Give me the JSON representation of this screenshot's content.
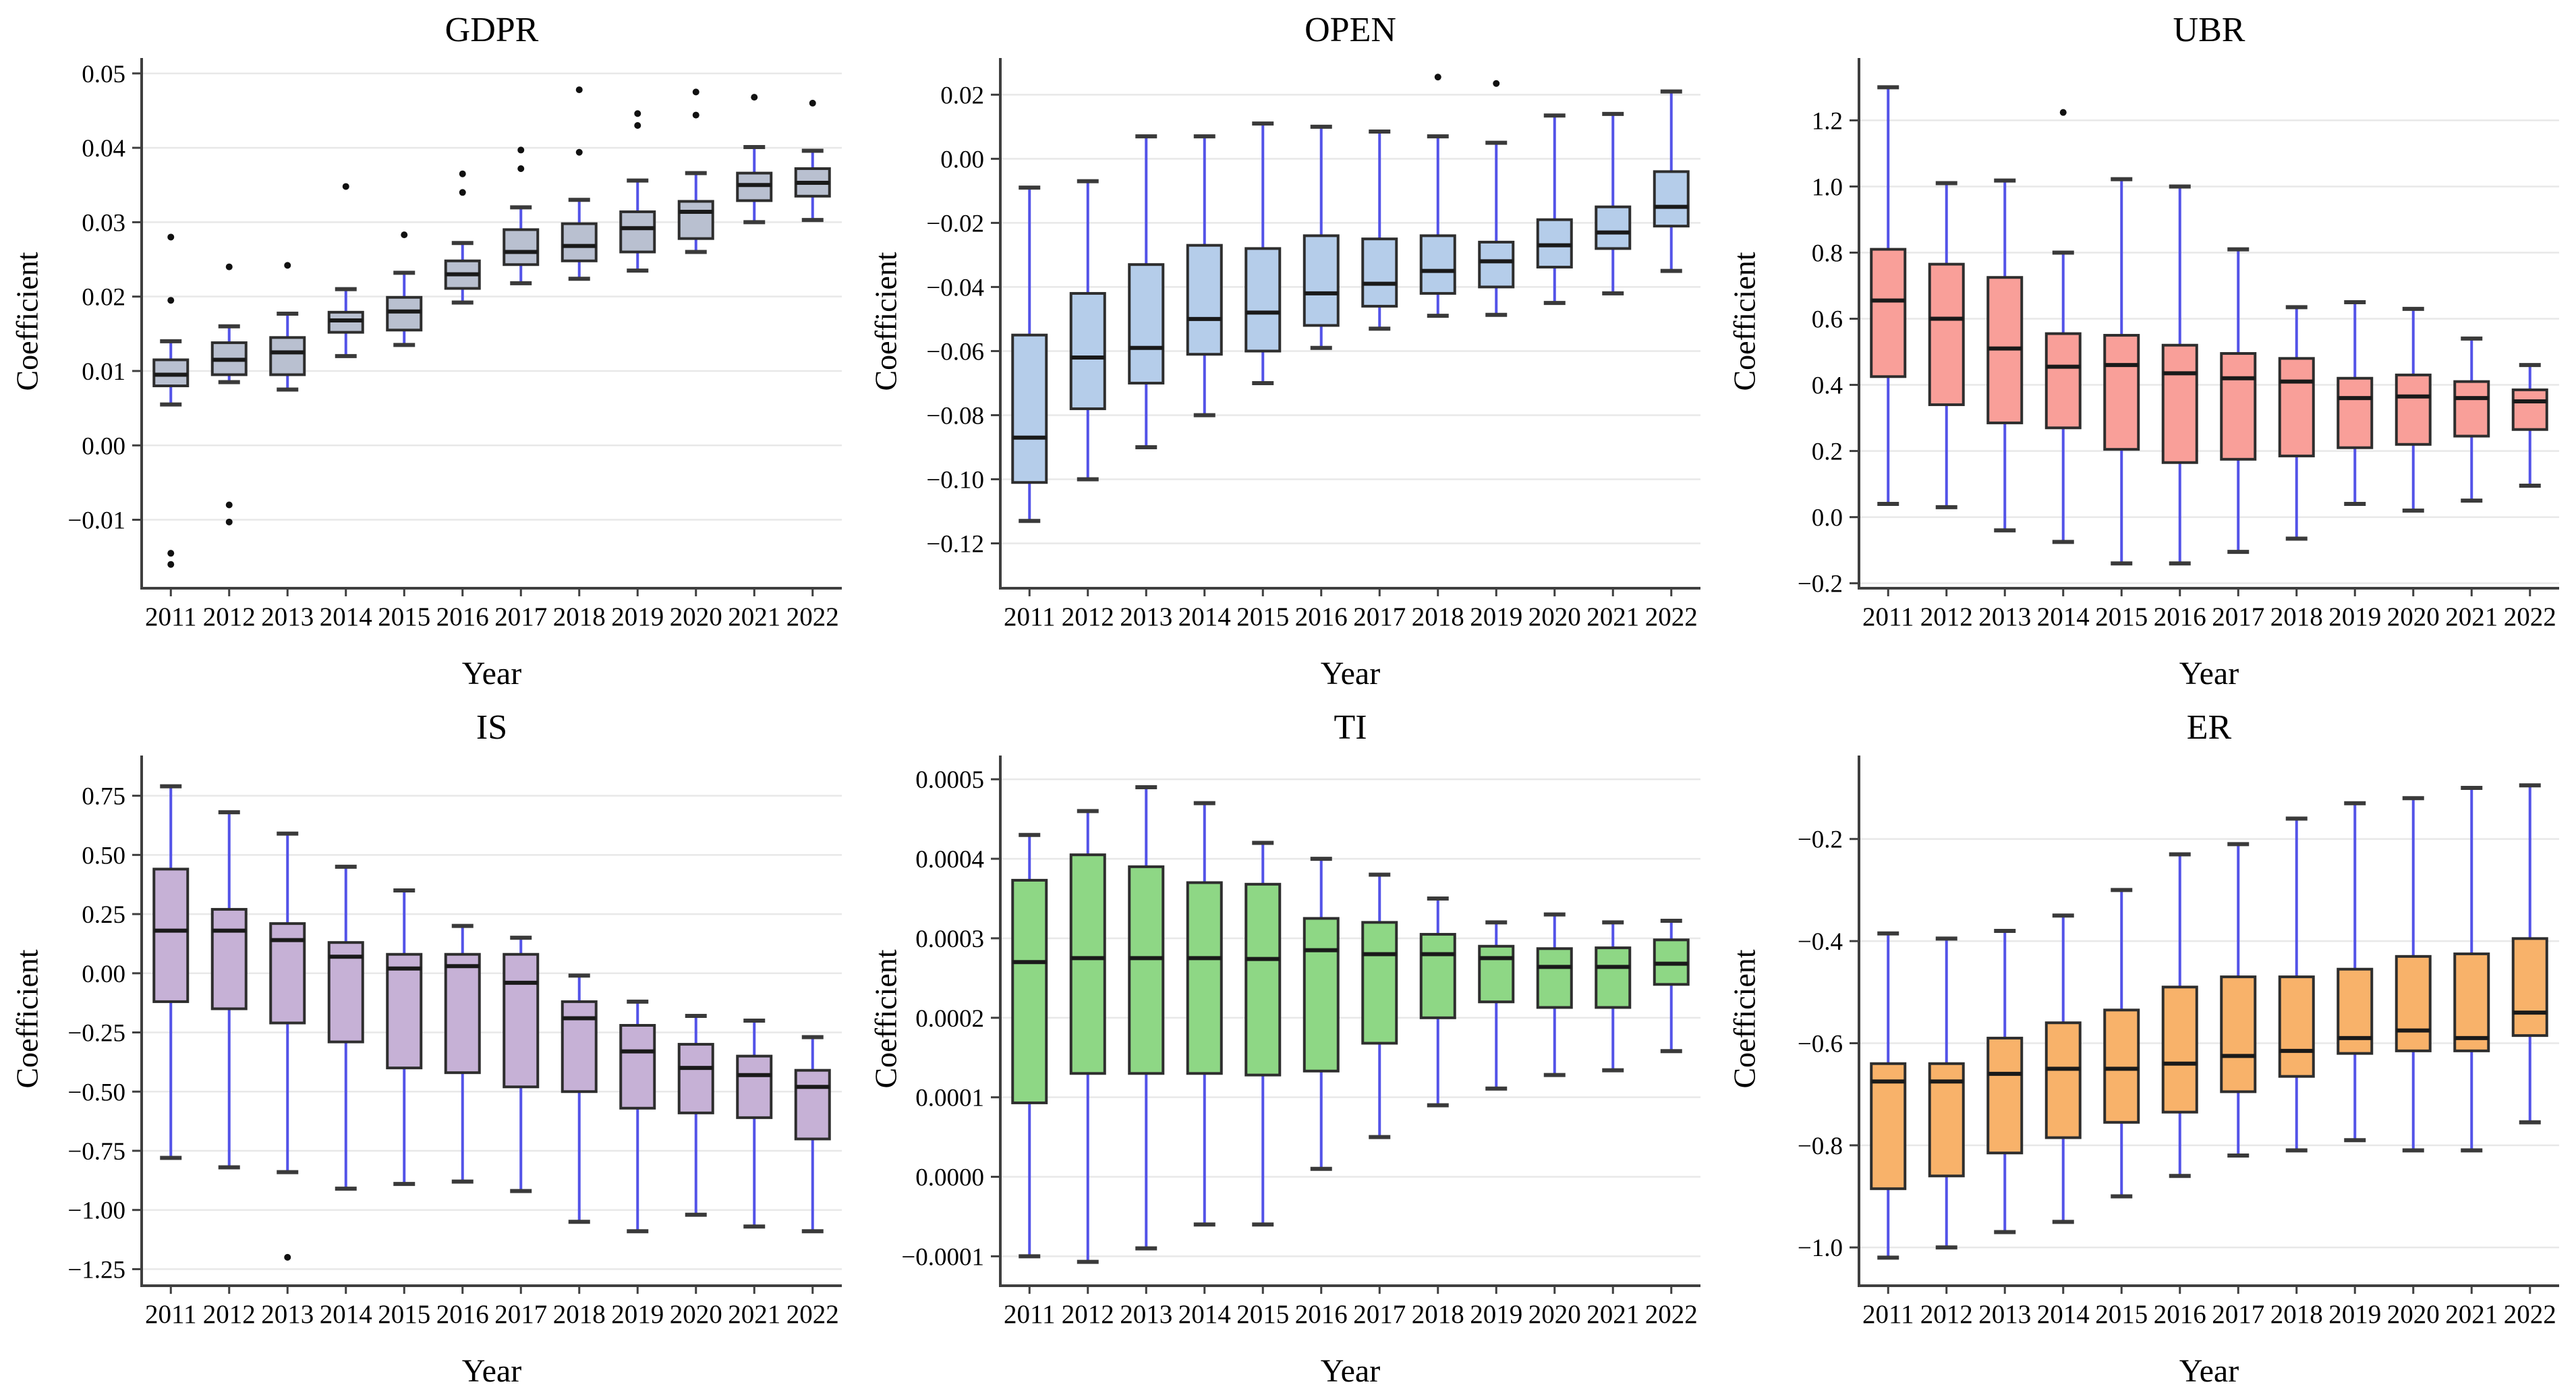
{
  "style": {
    "whisker_color": "#5353e8",
    "box_border_color": "#2e2e2e",
    "median_color": "#1a1a1a",
    "cap_color": "#3a3a3a",
    "grid_color": "#e8e8e8",
    "spine_color": "#3f3f3f",
    "outlier_color": "#111111",
    "background": "#ffffff"
  },
  "chart_data": [
    {
      "type": "boxplot",
      "title": "GDPR",
      "xlabel": "Year",
      "ylabel": "Coefficient",
      "legend_position": "none",
      "grid": "horizontal",
      "box_color": "#b9c0d0",
      "categories": [
        "2011",
        "2012",
        "2013",
        "2014",
        "2015",
        "2016",
        "2017",
        "2018",
        "2019",
        "2020",
        "2021",
        "2022"
      ],
      "ylim": [
        -0.0192,
        0.0508
      ],
      "ytick_values": [
        0.05,
        0.04,
        0.03,
        0.02,
        0.01,
        0.0,
        -0.01
      ],
      "ytick_labels": [
        "0.05",
        "0.04",
        "0.03",
        "0.02",
        "0.01",
        "0.00",
        "−0.01"
      ],
      "stats": [
        {
          "lo": 0.0055,
          "q1": 0.008,
          "med": 0.0095,
          "q3": 0.0115,
          "hi": 0.014,
          "out": [
            0.028,
            0.0195,
            -0.0145,
            -0.016
          ]
        },
        {
          "lo": 0.0085,
          "q1": 0.0095,
          "med": 0.0115,
          "q3": 0.0138,
          "hi": 0.016,
          "out": [
            0.024,
            -0.008,
            -0.0103
          ]
        },
        {
          "lo": 0.0075,
          "q1": 0.0095,
          "med": 0.0125,
          "q3": 0.0145,
          "hi": 0.0177,
          "out": [
            0.0242
          ]
        },
        {
          "lo": 0.012,
          "q1": 0.0152,
          "med": 0.0168,
          "q3": 0.0179,
          "hi": 0.021,
          "out": [
            0.0348
          ]
        },
        {
          "lo": 0.0135,
          "q1": 0.0155,
          "med": 0.018,
          "q3": 0.0199,
          "hi": 0.0232,
          "out": [
            0.0283
          ]
        },
        {
          "lo": 0.0192,
          "q1": 0.0211,
          "med": 0.023,
          "q3": 0.0248,
          "hi": 0.0272,
          "out": [
            0.0365,
            0.034
          ]
        },
        {
          "lo": 0.0218,
          "q1": 0.0243,
          "med": 0.026,
          "q3": 0.029,
          "hi": 0.032,
          "out": [
            0.0397,
            0.0372
          ]
        },
        {
          "lo": 0.0224,
          "q1": 0.0248,
          "med": 0.0268,
          "q3": 0.0298,
          "hi": 0.033,
          "out": [
            0.0478,
            0.0394
          ]
        },
        {
          "lo": 0.0235,
          "q1": 0.026,
          "med": 0.0292,
          "q3": 0.0314,
          "hi": 0.0356,
          "out": [
            0.0446,
            0.043
          ]
        },
        {
          "lo": 0.026,
          "q1": 0.0278,
          "med": 0.0314,
          "q3": 0.0328,
          "hi": 0.0366,
          "out": [
            0.0475,
            0.0444
          ]
        },
        {
          "lo": 0.03,
          "q1": 0.0329,
          "med": 0.035,
          "q3": 0.0366,
          "hi": 0.0401,
          "out": [
            0.0468
          ]
        },
        {
          "lo": 0.0303,
          "q1": 0.0335,
          "med": 0.0353,
          "q3": 0.0372,
          "hi": 0.0396,
          "out": [
            0.046
          ]
        }
      ]
    },
    {
      "type": "boxplot",
      "title": "OPEN",
      "xlabel": "Year",
      "ylabel": "Coefficient",
      "legend_position": "none",
      "grid": "horizontal",
      "box_color": "#b5cdea",
      "categories": [
        "2011",
        "2012",
        "2013",
        "2014",
        "2015",
        "2016",
        "2017",
        "2018",
        "2019",
        "2020",
        "2021",
        "2022"
      ],
      "ylim": [
        -0.134,
        0.0285
      ],
      "ytick_values": [
        0.02,
        0.0,
        -0.02,
        -0.04,
        -0.06,
        -0.08,
        -0.1,
        -0.12
      ],
      "ytick_labels": [
        "0.02",
        "0.00",
        "−0.02",
        "−0.04",
        "−0.06",
        "−0.08",
        "−0.10",
        "−0.12"
      ],
      "stats": [
        {
          "lo": -0.113,
          "q1": -0.101,
          "med": -0.087,
          "q3": -0.055,
          "hi": -0.009,
          "out": []
        },
        {
          "lo": -0.1,
          "q1": -0.078,
          "med": -0.062,
          "q3": -0.042,
          "hi": -0.007,
          "out": []
        },
        {
          "lo": -0.09,
          "q1": -0.07,
          "med": -0.059,
          "q3": -0.033,
          "hi": 0.007,
          "out": []
        },
        {
          "lo": -0.08,
          "q1": -0.061,
          "med": -0.05,
          "q3": -0.027,
          "hi": 0.007,
          "out": []
        },
        {
          "lo": -0.07,
          "q1": -0.06,
          "med": -0.048,
          "q3": -0.028,
          "hi": 0.011,
          "out": []
        },
        {
          "lo": -0.059,
          "q1": -0.052,
          "med": -0.042,
          "q3": -0.024,
          "hi": 0.01,
          "out": []
        },
        {
          "lo": -0.053,
          "q1": -0.046,
          "med": -0.039,
          "q3": -0.025,
          "hi": 0.0085,
          "out": []
        },
        {
          "lo": -0.049,
          "q1": -0.042,
          "med": -0.035,
          "q3": -0.024,
          "hi": 0.007,
          "out": [
            0.0255
          ]
        },
        {
          "lo": -0.0487,
          "q1": -0.04,
          "med": -0.032,
          "q3": -0.026,
          "hi": 0.005,
          "out": [
            0.0235
          ]
        },
        {
          "lo": -0.045,
          "q1": -0.0338,
          "med": -0.027,
          "q3": -0.019,
          "hi": 0.0135,
          "out": []
        },
        {
          "lo": -0.042,
          "q1": -0.028,
          "med": -0.023,
          "q3": -0.015,
          "hi": 0.014,
          "out": []
        },
        {
          "lo": -0.035,
          "q1": -0.021,
          "med": -0.015,
          "q3": -0.004,
          "hi": 0.021,
          "out": []
        }
      ]
    },
    {
      "type": "boxplot",
      "title": "UBR",
      "xlabel": "Year",
      "ylabel": "Coefficient",
      "legend_position": "none",
      "grid": "horizontal",
      "box_color": "#f99f99",
      "categories": [
        "2011",
        "2012",
        "2013",
        "2014",
        "2015",
        "2016",
        "2017",
        "2018",
        "2019",
        "2020",
        "2021",
        "2022"
      ],
      "ylim": [
        -0.215,
        1.36
      ],
      "ytick_values": [
        1.2,
        1.0,
        0.8,
        0.6,
        0.4,
        0.2,
        0.0,
        -0.2
      ],
      "ytick_labels": [
        "1.2",
        "1.0",
        "0.8",
        "0.6",
        "0.4",
        "0.2",
        "0.0",
        "−0.2"
      ],
      "stats": [
        {
          "lo": 0.04,
          "q1": 0.425,
          "med": 0.655,
          "q3": 0.81,
          "hi": 1.3,
          "out": []
        },
        {
          "lo": 0.03,
          "q1": 0.34,
          "med": 0.6,
          "q3": 0.765,
          "hi": 1.01,
          "out": []
        },
        {
          "lo": -0.04,
          "q1": 0.285,
          "med": 0.51,
          "q3": 0.725,
          "hi": 1.018,
          "out": []
        },
        {
          "lo": -0.075,
          "q1": 0.27,
          "med": 0.455,
          "q3": 0.555,
          "hi": 0.8,
          "out": [
            1.224
          ]
        },
        {
          "lo": -0.14,
          "q1": 0.205,
          "med": 0.46,
          "q3": 0.55,
          "hi": 1.022,
          "out": []
        },
        {
          "lo": -0.14,
          "q1": 0.165,
          "med": 0.435,
          "q3": 0.52,
          "hi": 1.0,
          "out": []
        },
        {
          "lo": -0.105,
          "q1": 0.175,
          "med": 0.42,
          "q3": 0.495,
          "hi": 0.81,
          "out": []
        },
        {
          "lo": -0.065,
          "q1": 0.185,
          "med": 0.41,
          "q3": 0.48,
          "hi": 0.635,
          "out": []
        },
        {
          "lo": 0.04,
          "q1": 0.21,
          "med": 0.36,
          "q3": 0.42,
          "hi": 0.65,
          "out": []
        },
        {
          "lo": 0.02,
          "q1": 0.22,
          "med": 0.365,
          "q3": 0.43,
          "hi": 0.63,
          "out": []
        },
        {
          "lo": 0.05,
          "q1": 0.245,
          "med": 0.36,
          "q3": 0.41,
          "hi": 0.54,
          "out": []
        },
        {
          "lo": 0.095,
          "q1": 0.265,
          "med": 0.35,
          "q3": 0.385,
          "hi": 0.46,
          "out": []
        }
      ]
    },
    {
      "type": "boxplot",
      "title": "IS",
      "xlabel": "Year",
      "ylabel": "Coefficient",
      "legend_position": "none",
      "grid": "horizontal",
      "box_color": "#c6b1d6",
      "categories": [
        "2011",
        "2012",
        "2013",
        "2014",
        "2015",
        "2016",
        "2017",
        "2018",
        "2019",
        "2020",
        "2021",
        "2022"
      ],
      "ylim": [
        -1.32,
        0.88
      ],
      "ytick_values": [
        0.75,
        0.5,
        0.25,
        0.0,
        -0.25,
        -0.5,
        -0.75,
        -1.0,
        -1.25
      ],
      "ytick_labels": [
        "0.75",
        "0.50",
        "0.25",
        "0.00",
        "−0.25",
        "−0.50",
        "−0.75",
        "−1.00",
        "−1.25"
      ],
      "stats": [
        {
          "lo": -0.78,
          "q1": -0.12,
          "med": 0.18,
          "q3": 0.44,
          "hi": 0.79,
          "out": []
        },
        {
          "lo": -0.82,
          "q1": -0.15,
          "med": 0.18,
          "q3": 0.27,
          "hi": 0.68,
          "out": []
        },
        {
          "lo": -0.84,
          "q1": -0.21,
          "med": 0.14,
          "q3": 0.21,
          "hi": 0.59,
          "out": [
            -1.2
          ]
        },
        {
          "lo": -0.91,
          "q1": -0.29,
          "med": 0.07,
          "q3": 0.13,
          "hi": 0.45,
          "out": []
        },
        {
          "lo": -0.89,
          "q1": -0.4,
          "med": 0.02,
          "q3": 0.08,
          "hi": 0.35,
          "out": []
        },
        {
          "lo": -0.88,
          "q1": -0.42,
          "med": 0.03,
          "q3": 0.08,
          "hi": 0.2,
          "out": []
        },
        {
          "lo": -0.92,
          "q1": -0.48,
          "med": -0.04,
          "q3": 0.08,
          "hi": 0.15,
          "out": []
        },
        {
          "lo": -1.05,
          "q1": -0.5,
          "med": -0.19,
          "q3": -0.12,
          "hi": -0.01,
          "out": []
        },
        {
          "lo": -1.09,
          "q1": -0.57,
          "med": -0.33,
          "q3": -0.22,
          "hi": -0.12,
          "out": []
        },
        {
          "lo": -1.02,
          "q1": -0.59,
          "med": -0.4,
          "q3": -0.3,
          "hi": -0.18,
          "out": []
        },
        {
          "lo": -1.07,
          "q1": -0.61,
          "med": -0.43,
          "q3": -0.35,
          "hi": -0.2,
          "out": []
        },
        {
          "lo": -1.09,
          "q1": -0.7,
          "med": -0.48,
          "q3": -0.41,
          "hi": -0.27,
          "out": []
        }
      ]
    },
    {
      "type": "boxplot",
      "title": "TI",
      "xlabel": "Year",
      "ylabel": "Coefficient",
      "legend_position": "none",
      "grid": "horizontal",
      "box_color": "#8ed785",
      "categories": [
        "2011",
        "2012",
        "2013",
        "2014",
        "2015",
        "2016",
        "2017",
        "2018",
        "2019",
        "2020",
        "2021",
        "2022"
      ],
      "ylim": [
        -0.000137,
        0.000518
      ],
      "ytick_values": [
        0.0005,
        0.0004,
        0.0003,
        0.0002,
        0.0001,
        0.0,
        -0.0001
      ],
      "ytick_labels": [
        "0.0005",
        "0.0004",
        "0.0003",
        "0.0002",
        "0.0001",
        "0.0000",
        "−0.0001"
      ],
      "stats": [
        {
          "lo": -0.0001,
          "q1": 9.3e-05,
          "med": 0.00027,
          "q3": 0.000373,
          "hi": 0.00043,
          "out": []
        },
        {
          "lo": -0.000107,
          "q1": 0.00013,
          "med": 0.000275,
          "q3": 0.000405,
          "hi": 0.00046,
          "out": []
        },
        {
          "lo": -9e-05,
          "q1": 0.00013,
          "med": 0.000275,
          "q3": 0.00039,
          "hi": 0.00049,
          "out": []
        },
        {
          "lo": -6e-05,
          "q1": 0.00013,
          "med": 0.000275,
          "q3": 0.00037,
          "hi": 0.00047,
          "out": []
        },
        {
          "lo": -6e-05,
          "q1": 0.000128,
          "med": 0.000274,
          "q3": 0.000368,
          "hi": 0.00042,
          "out": []
        },
        {
          "lo": 1e-05,
          "q1": 0.000133,
          "med": 0.000285,
          "q3": 0.000325,
          "hi": 0.0004,
          "out": []
        },
        {
          "lo": 5e-05,
          "q1": 0.000168,
          "med": 0.00028,
          "q3": 0.00032,
          "hi": 0.00038,
          "out": []
        },
        {
          "lo": 9e-05,
          "q1": 0.0002,
          "med": 0.00028,
          "q3": 0.000305,
          "hi": 0.00035,
          "out": []
        },
        {
          "lo": 0.000111,
          "q1": 0.00022,
          "med": 0.000275,
          "q3": 0.00029,
          "hi": 0.00032,
          "out": []
        },
        {
          "lo": 0.000128,
          "q1": 0.000213,
          "med": 0.000264,
          "q3": 0.000287,
          "hi": 0.00033,
          "out": []
        },
        {
          "lo": 0.000134,
          "q1": 0.000213,
          "med": 0.000264,
          "q3": 0.000288,
          "hi": 0.00032,
          "out": []
        },
        {
          "lo": 0.000158,
          "q1": 0.000242,
          "med": 0.000268,
          "q3": 0.000298,
          "hi": 0.000322,
          "out": []
        }
      ]
    },
    {
      "type": "boxplot",
      "title": "ER",
      "xlabel": "Year",
      "ylabel": "Coefficient",
      "legend_position": "none",
      "grid": "horizontal",
      "box_color": "#f8b26a",
      "categories": [
        "2011",
        "2012",
        "2013",
        "2014",
        "2015",
        "2016",
        "2017",
        "2018",
        "2019",
        "2020",
        "2021",
        "2022"
      ],
      "ylim": [
        -1.075,
        -0.055
      ],
      "ytick_values": [
        -0.2,
        -0.4,
        -0.6,
        -0.8,
        -1.0
      ],
      "ytick_labels": [
        "−0.2",
        "−0.4",
        "−0.6",
        "−0.8",
        "−1.0"
      ],
      "stats": [
        {
          "lo": -1.02,
          "q1": -0.885,
          "med": -0.675,
          "q3": -0.64,
          "hi": -0.385,
          "out": []
        },
        {
          "lo": -1.0,
          "q1": -0.86,
          "med": -0.675,
          "q3": -0.64,
          "hi": -0.395,
          "out": []
        },
        {
          "lo": -0.97,
          "q1": -0.815,
          "med": -0.66,
          "q3": -0.59,
          "hi": -0.38,
          "out": []
        },
        {
          "lo": -0.95,
          "q1": -0.785,
          "med": -0.65,
          "q3": -0.56,
          "hi": -0.35,
          "out": []
        },
        {
          "lo": -0.9,
          "q1": -0.755,
          "med": -0.65,
          "q3": -0.535,
          "hi": -0.3,
          "out": []
        },
        {
          "lo": -0.86,
          "q1": -0.735,
          "med": -0.64,
          "q3": -0.49,
          "hi": -0.23,
          "out": []
        },
        {
          "lo": -0.82,
          "q1": -0.695,
          "med": -0.625,
          "q3": -0.47,
          "hi": -0.21,
          "out": []
        },
        {
          "lo": -0.81,
          "q1": -0.665,
          "med": -0.615,
          "q3": -0.47,
          "hi": -0.16,
          "out": []
        },
        {
          "lo": -0.79,
          "q1": -0.62,
          "med": -0.59,
          "q3": -0.455,
          "hi": -0.13,
          "out": []
        },
        {
          "lo": -0.81,
          "q1": -0.615,
          "med": -0.575,
          "q3": -0.43,
          "hi": -0.12,
          "out": []
        },
        {
          "lo": -0.81,
          "q1": -0.615,
          "med": -0.59,
          "q3": -0.425,
          "hi": -0.1,
          "out": []
        },
        {
          "lo": -0.755,
          "q1": -0.585,
          "med": -0.54,
          "q3": -0.395,
          "hi": -0.095,
          "out": []
        }
      ]
    }
  ]
}
